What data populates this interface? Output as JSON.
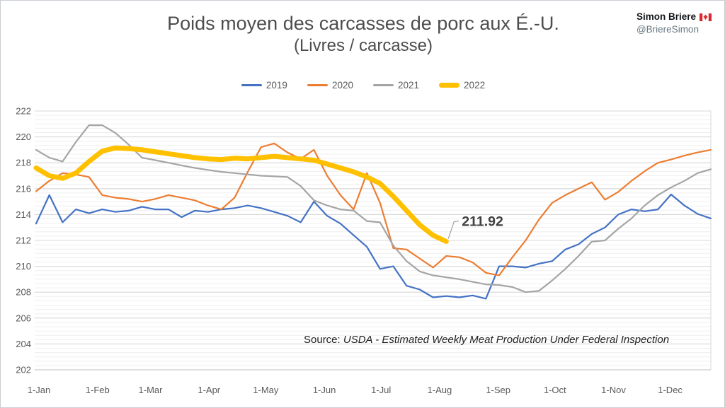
{
  "header": {
    "title": "Poids moyen des carcasses de porc aux É.-U.",
    "subtitle": "(Livres / carcasse)",
    "attribution": {
      "name": "Simon Briere",
      "handle": "@BriereSimon",
      "flag_icon": "canada-flag"
    }
  },
  "source_note": {
    "prefix": "Source: ",
    "text": "USDA - Estimated Weekly Meat Production Under Federal Inspection"
  },
  "chart_data": {
    "type": "line",
    "title": "Poids moyen des carcasses de porc aux É.-U.",
    "subtitle": "(Livres / carcasse)",
    "legend_position": "top",
    "grid": {
      "horizontal_major": true,
      "horizontal_minor": true,
      "vertical": false
    },
    "x_axis": {
      "tick_labels": [
        "1-Jan",
        "1-Feb",
        "1-Mar",
        "1-Apr",
        "1-May",
        "1-Jun",
        "1-Jul",
        "1-Aug",
        "1-Sep",
        "1-Oct",
        "1-Nov",
        "1-Dec"
      ],
      "month_start_days": [
        0,
        31,
        59,
        90,
        120,
        151,
        181,
        212,
        243,
        273,
        304,
        334
      ],
      "days_span": 357,
      "sampling": "weekly"
    },
    "y_axis": {
      "min": 202,
      "max": 222,
      "major_step": 2,
      "minor_step": 0.3333,
      "tick_labels": [
        "202",
        "204",
        "206",
        "208",
        "210",
        "212",
        "214",
        "216",
        "218",
        "220",
        "222"
      ]
    },
    "series": [
      {
        "name": "2019",
        "color": "#4472C4",
        "stroke_width": 2.2,
        "values": [
          213.3,
          215.5,
          213.4,
          214.4,
          214.1,
          214.4,
          214.2,
          214.3,
          214.6,
          214.4,
          214.4,
          213.8,
          214.3,
          214.2,
          214.4,
          214.5,
          214.7,
          214.5,
          214.2,
          213.9,
          213.4,
          215.0,
          213.9,
          213.3,
          212.4,
          211.5,
          209.8,
          210.0,
          208.5,
          208.2,
          207.6,
          207.7,
          207.6,
          207.75,
          207.5,
          210.0,
          210.0,
          209.9,
          210.2,
          210.4,
          211.3,
          211.7,
          212.5,
          213.0,
          214.0,
          214.4,
          214.25,
          214.4,
          215.55,
          214.7,
          214.05,
          213.7
        ]
      },
      {
        "name": "2020",
        "color": "#ED7D31",
        "stroke_width": 2.2,
        "values": [
          215.8,
          216.6,
          217.2,
          217.1,
          216.9,
          215.5,
          215.3,
          215.2,
          215.0,
          215.2,
          215.5,
          215.3,
          215.1,
          214.7,
          214.4,
          215.3,
          217.3,
          219.2,
          219.5,
          218.8,
          218.3,
          219.0,
          217.0,
          215.5,
          214.4,
          217.2,
          214.9,
          211.4,
          211.3,
          210.6,
          209.9,
          210.8,
          210.7,
          210.3,
          209.5,
          209.3,
          210.7,
          212.0,
          213.6,
          214.9,
          215.5,
          216.0,
          216.5,
          215.15,
          215.75,
          216.6,
          217.35,
          218.0,
          218.25,
          218.55,
          218.8,
          219.0
        ]
      },
      {
        "name": "2021",
        "color": "#A5A5A5",
        "stroke_width": 2.2,
        "values": [
          219.0,
          218.4,
          218.1,
          219.6,
          220.9,
          220.9,
          220.3,
          219.4,
          218.4,
          218.2,
          218.0,
          217.8,
          217.6,
          217.45,
          217.3,
          217.2,
          217.1,
          217.0,
          216.95,
          216.9,
          216.2,
          215.1,
          214.7,
          214.4,
          214.3,
          213.5,
          213.4,
          211.6,
          210.4,
          209.6,
          209.3,
          209.15,
          209.0,
          208.8,
          208.6,
          208.55,
          208.4,
          208.0,
          208.1,
          208.9,
          209.8,
          210.8,
          211.9,
          212.0,
          212.9,
          213.7,
          214.7,
          215.5,
          216.1,
          216.6,
          217.2,
          217.5
        ]
      },
      {
        "name": "2022",
        "color": "#FFC000",
        "stroke_width": 7,
        "values": [
          217.6,
          217.0,
          216.8,
          217.2,
          218.1,
          218.9,
          219.15,
          219.1,
          219.0,
          218.85,
          218.7,
          218.55,
          218.4,
          218.3,
          218.25,
          218.35,
          218.3,
          218.4,
          218.5,
          218.4,
          218.3,
          218.2,
          217.9,
          217.6,
          217.3,
          216.9,
          216.4,
          215.4,
          214.3,
          213.2,
          212.4,
          211.92
        ]
      }
    ],
    "annotation": {
      "text": "211.92",
      "series": "2022",
      "attached_to": "last-point"
    }
  },
  "colors": {
    "grid_major": "#d9d9d9",
    "grid_minor": "#efefef",
    "axis_line": "#bfbfbf",
    "tick_text": "#595959",
    "annotation_text": "#404040",
    "callout_line": "#a6a6a6"
  }
}
